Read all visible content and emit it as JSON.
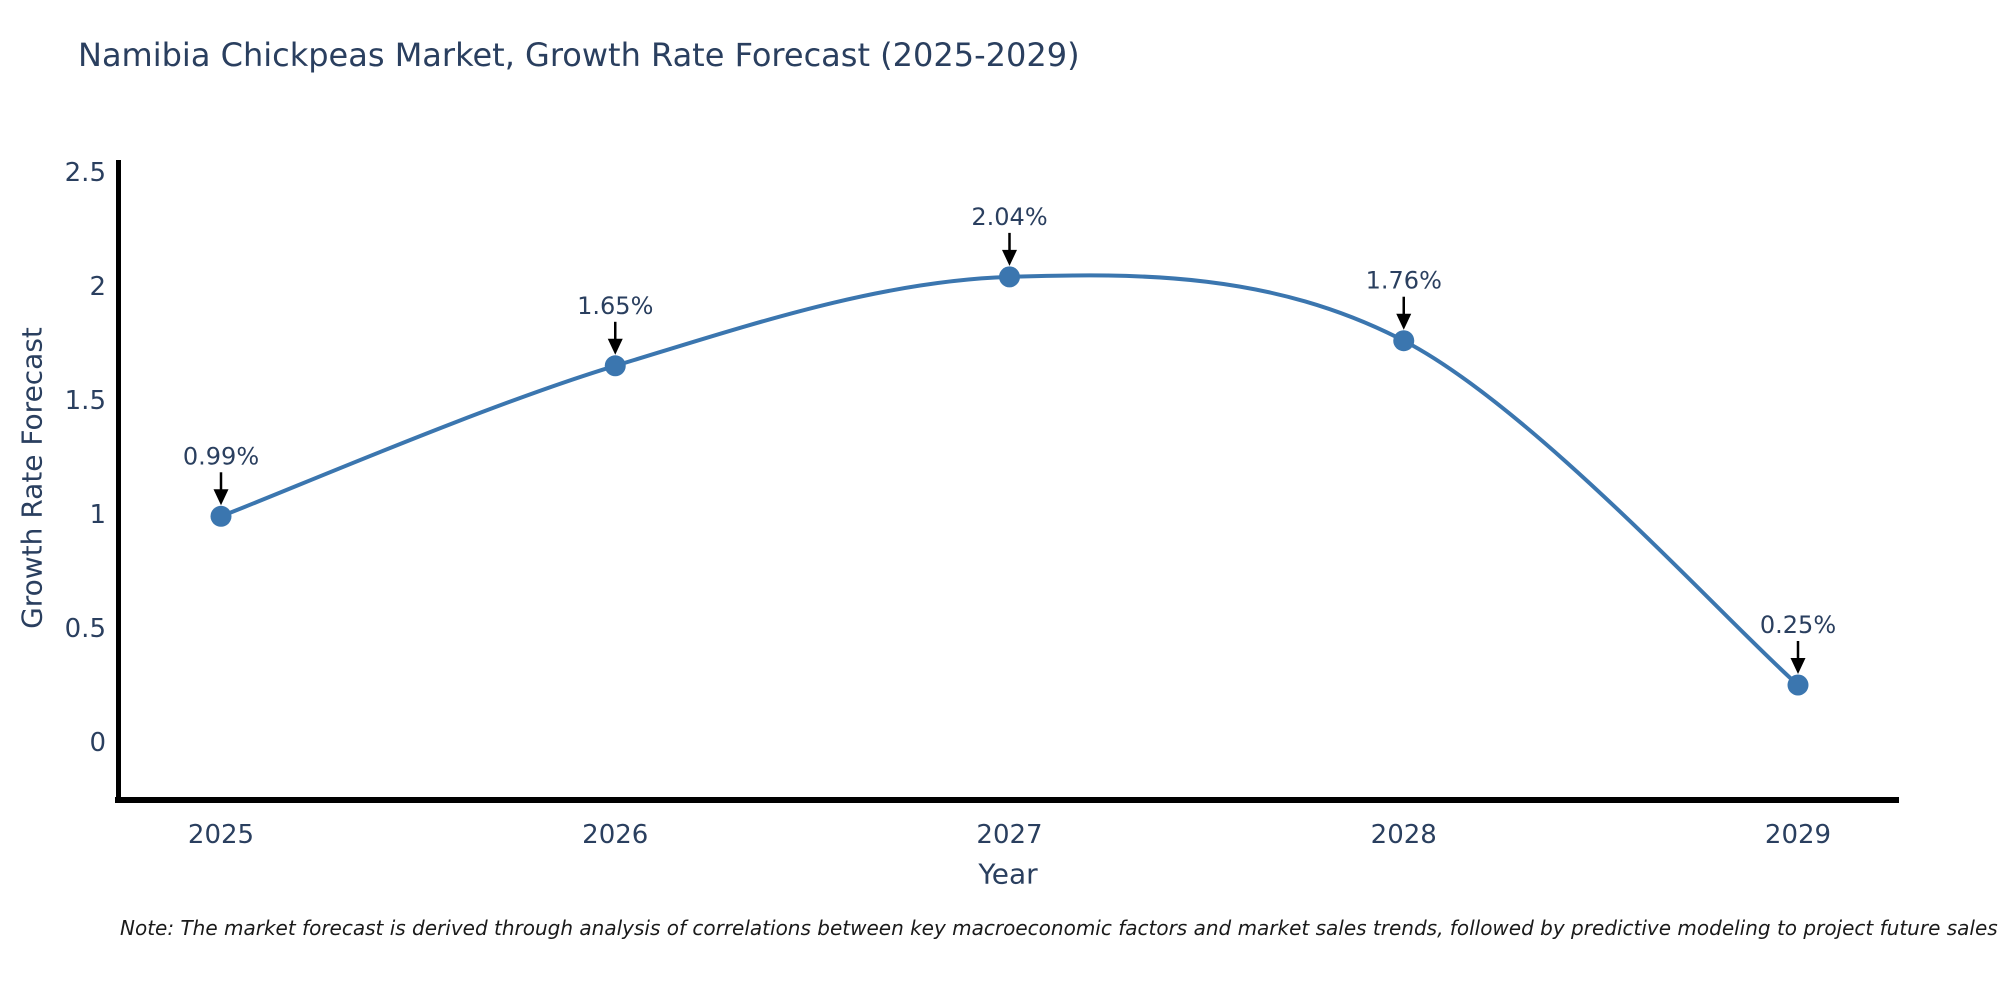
{
  "page": {
    "note": "Note: The market forecast is derived through analysis of correlations between key macroeconomic factors and market sales trends, followed by predictive modeling to project future sales"
  },
  "chart_data": {
    "type": "line",
    "title": "Namibia Chickpeas Market, Growth Rate Forecast (2025-2029)",
    "xlabel": "Year",
    "ylabel": "Growth Rate Forecast",
    "categories": [
      2025,
      2026,
      2027,
      2028,
      2029
    ],
    "series": [
      {
        "name": "Growth Rate Forecast",
        "values": [
          0.99,
          1.65,
          2.04,
          1.76,
          0.25
        ]
      }
    ],
    "point_labels": [
      "0.99%",
      "1.65%",
      "2.04%",
      "1.76%",
      "0.25%"
    ],
    "yticks": [
      0,
      0.5,
      1,
      1.5,
      2,
      2.5
    ],
    "ylim": [
      -0.26,
      2.55
    ],
    "xlim": [
      2024.74,
      2029.26
    ],
    "line_shape": "spline",
    "grid": false,
    "legend": "none",
    "colors": {
      "line": "#3b76af",
      "marker": "#3b76af",
      "annotation": "#2a3f5f",
      "annotation_arrow": "#000000",
      "title_text": "#2a3f5f",
      "tick_text": "#2a3f5f",
      "axis_line": "#000000",
      "note_text": "#1a1a1a"
    }
  }
}
